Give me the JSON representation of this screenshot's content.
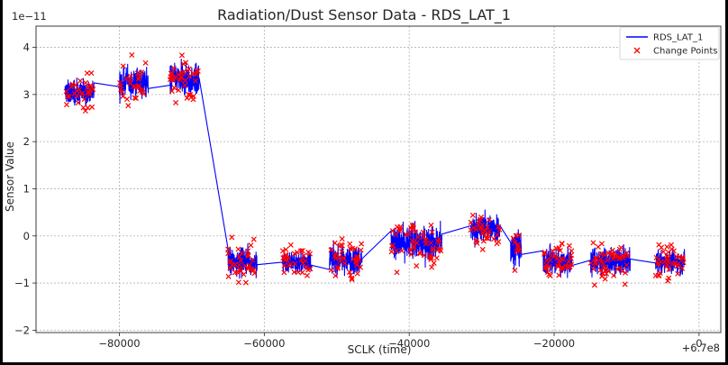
{
  "chart_data": {
    "type": "line",
    "title": "Radiation/Dust Sensor Data - RDS_LAT_1",
    "xlabel": "SCLK (time)",
    "ylabel": "Sensor Value",
    "x_offset_label": "+6.7e8",
    "y_scale_label": "1e−11",
    "xlim": [
      -91500,
      3000
    ],
    "ylim": [
      -2.05,
      4.45
    ],
    "x_ticks": [
      -80000,
      -60000,
      -40000,
      -20000,
      0
    ],
    "x_tick_labels": [
      "−80000",
      "−60000",
      "−40000",
      "−20000",
      "0"
    ],
    "y_ticks": [
      -2,
      -1,
      0,
      1,
      2,
      3,
      4
    ],
    "y_tick_labels": [
      "−2",
      "−1",
      "0",
      "1",
      "2",
      "3",
      "4"
    ],
    "grid": true,
    "legend_position": "top-right",
    "colors": {
      "line": "#0000ff",
      "markers": "#ff0000"
    },
    "series": [
      {
        "name": "RDS_LAT_1",
        "kind": "line",
        "segments": [
          {
            "x_start": -87500,
            "x_end": -83500,
            "mean": 3.05,
            "spread": 0.32
          },
          {
            "x_start": -80000,
            "x_end": -76000,
            "mean": 3.25,
            "spread": 0.38
          },
          {
            "x_start": -73000,
            "x_end": -69000,
            "mean": 3.3,
            "spread": 0.4
          },
          {
            "x_start": -65000,
            "x_end": -61000,
            "mean": -0.55,
            "spread": 0.35
          },
          {
            "x_start": -57500,
            "x_end": -53500,
            "mean": -0.55,
            "spread": 0.28
          },
          {
            "x_start": -51000,
            "x_end": -46500,
            "mean": -0.5,
            "spread": 0.35
          },
          {
            "x_start": -42500,
            "x_end": -35500,
            "mean": -0.15,
            "spread": 0.42
          },
          {
            "x_start": -31500,
            "x_end": -27500,
            "mean": 0.15,
            "spread": 0.38
          },
          {
            "x_start": -26000,
            "x_end": -24500,
            "mean": -0.25,
            "spread": 0.45
          },
          {
            "x_start": -21500,
            "x_end": -17500,
            "mean": -0.55,
            "spread": 0.35
          },
          {
            "x_start": -15000,
            "x_end": -9500,
            "mean": -0.55,
            "spread": 0.35
          },
          {
            "x_start": -6000,
            "x_end": -2000,
            "mean": -0.55,
            "spread": 0.3
          }
        ]
      },
      {
        "name": "Change Points",
        "kind": "scatter",
        "marker": "x"
      }
    ]
  }
}
